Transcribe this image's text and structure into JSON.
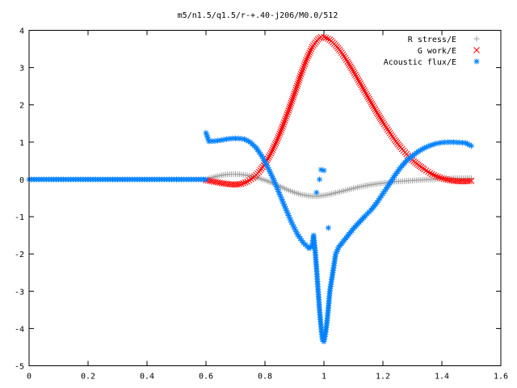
{
  "chart_data": {
    "type": "scatter",
    "title": "m5/n1.5/q1.5/r-+.40-j206/M0.0/512",
    "xlabel": "",
    "ylabel": "",
    "xlim": [
      0,
      1.6
    ],
    "ylim": [
      -5,
      4
    ],
    "xticks": [
      "0",
      "0.2",
      "0.4",
      "0.6",
      "0.8",
      "1",
      "1.2",
      "1.4",
      "1.6"
    ],
    "yticks": [
      "4",
      "3",
      "2",
      "1",
      "0",
      "-1",
      "-2",
      "-3",
      "-4",
      "-5"
    ],
    "grid": false,
    "legend_position": "top-right",
    "series": [
      {
        "name": "R stress/E",
        "marker": "+",
        "color": "#a0a0a0",
        "points": [
          [
            0.6,
            0.0
          ],
          [
            0.62,
            0.05
          ],
          [
            0.64,
            0.09
          ],
          [
            0.66,
            0.12
          ],
          [
            0.68,
            0.14
          ],
          [
            0.7,
            0.14
          ],
          [
            0.72,
            0.13
          ],
          [
            0.74,
            0.11
          ],
          [
            0.76,
            0.07
          ],
          [
            0.78,
            0.03
          ],
          [
            0.8,
            -0.02
          ],
          [
            0.82,
            -0.08
          ],
          [
            0.84,
            -0.15
          ],
          [
            0.86,
            -0.22
          ],
          [
            0.88,
            -0.29
          ],
          [
            0.9,
            -0.35
          ],
          [
            0.92,
            -0.4
          ],
          [
            0.94,
            -0.43
          ],
          [
            0.96,
            -0.45
          ],
          [
            0.98,
            -0.45
          ],
          [
            1.0,
            -0.43
          ],
          [
            1.02,
            -0.4
          ],
          [
            1.04,
            -0.36
          ],
          [
            1.06,
            -0.32
          ],
          [
            1.08,
            -0.28
          ],
          [
            1.1,
            -0.24
          ],
          [
            1.12,
            -0.2
          ],
          [
            1.14,
            -0.17
          ],
          [
            1.16,
            -0.14
          ],
          [
            1.18,
            -0.12
          ],
          [
            1.2,
            -0.1
          ],
          [
            1.22,
            -0.08
          ],
          [
            1.24,
            -0.06
          ],
          [
            1.26,
            -0.05
          ],
          [
            1.28,
            -0.04
          ],
          [
            1.3,
            -0.03
          ],
          [
            1.32,
            -0.02
          ],
          [
            1.34,
            -0.01
          ],
          [
            1.36,
            0.0
          ],
          [
            1.38,
            0.01
          ],
          [
            1.4,
            0.02
          ],
          [
            1.42,
            0.02
          ],
          [
            1.44,
            0.03
          ],
          [
            1.46,
            0.03
          ],
          [
            1.48,
            0.03
          ],
          [
            1.5,
            0.03
          ]
        ]
      },
      {
        "name": "G work/E",
        "marker": "x",
        "color": "#ff0000",
        "points": [
          [
            0.6,
            -0.02
          ],
          [
            0.62,
            -0.05
          ],
          [
            0.64,
            -0.08
          ],
          [
            0.66,
            -0.11
          ],
          [
            0.68,
            -0.13
          ],
          [
            0.7,
            -0.14
          ],
          [
            0.72,
            -0.12
          ],
          [
            0.74,
            -0.06
          ],
          [
            0.76,
            0.04
          ],
          [
            0.78,
            0.2
          ],
          [
            0.8,
            0.42
          ],
          [
            0.82,
            0.7
          ],
          [
            0.84,
            1.03
          ],
          [
            0.86,
            1.42
          ],
          [
            0.88,
            1.85
          ],
          [
            0.9,
            2.3
          ],
          [
            0.92,
            2.77
          ],
          [
            0.94,
            3.2
          ],
          [
            0.96,
            3.55
          ],
          [
            0.98,
            3.76
          ],
          [
            0.99,
            3.82
          ],
          [
            1.0,
            3.82
          ],
          [
            1.02,
            3.75
          ],
          [
            1.04,
            3.6
          ],
          [
            1.06,
            3.4
          ],
          [
            1.08,
            3.16
          ],
          [
            1.1,
            2.9
          ],
          [
            1.12,
            2.62
          ],
          [
            1.14,
            2.34
          ],
          [
            1.16,
            2.06
          ],
          [
            1.18,
            1.79
          ],
          [
            1.2,
            1.53
          ],
          [
            1.22,
            1.29
          ],
          [
            1.24,
            1.06
          ],
          [
            1.26,
            0.86
          ],
          [
            1.28,
            0.68
          ],
          [
            1.3,
            0.52
          ],
          [
            1.32,
            0.39
          ],
          [
            1.34,
            0.27
          ],
          [
            1.36,
            0.17
          ],
          [
            1.38,
            0.09
          ],
          [
            1.4,
            0.03
          ],
          [
            1.42,
            -0.01
          ],
          [
            1.44,
            -0.04
          ],
          [
            1.46,
            -0.05
          ],
          [
            1.48,
            -0.05
          ],
          [
            1.5,
            -0.04
          ]
        ]
      },
      {
        "name": "Acoustic flux/E",
        "marker": "*",
        "color": "#0080ff",
        "points": [
          [
            0.0,
            0.0
          ],
          [
            0.05,
            0.0
          ],
          [
            0.1,
            0.0
          ],
          [
            0.15,
            0.0
          ],
          [
            0.2,
            0.0
          ],
          [
            0.25,
            0.0
          ],
          [
            0.3,
            0.0
          ],
          [
            0.35,
            0.0
          ],
          [
            0.4,
            0.0
          ],
          [
            0.45,
            0.0
          ],
          [
            0.5,
            0.0
          ],
          [
            0.55,
            0.0
          ],
          [
            0.6,
            0.0
          ],
          [
            0.6,
            1.25
          ],
          [
            0.61,
            1.02
          ],
          [
            0.63,
            1.03
          ],
          [
            0.65,
            1.05
          ],
          [
            0.67,
            1.08
          ],
          [
            0.69,
            1.1
          ],
          [
            0.71,
            1.1
          ],
          [
            0.73,
            1.08
          ],
          [
            0.75,
            1.0
          ],
          [
            0.77,
            0.85
          ],
          [
            0.79,
            0.62
          ],
          [
            0.81,
            0.32
          ],
          [
            0.83,
            -0.02
          ],
          [
            0.85,
            -0.4
          ],
          [
            0.87,
            -0.78
          ],
          [
            0.89,
            -1.15
          ],
          [
            0.91,
            -1.47
          ],
          [
            0.93,
            -1.7
          ],
          [
            0.95,
            -1.85
          ],
          [
            0.96,
            -1.78
          ],
          [
            0.965,
            -1.5
          ],
          [
            0.97,
            -1.9
          ],
          [
            0.975,
            -2.4
          ],
          [
            0.98,
            -2.95
          ],
          [
            0.985,
            -3.5
          ],
          [
            0.99,
            -3.95
          ],
          [
            0.995,
            -4.3
          ],
          [
            1.0,
            -4.35
          ],
          [
            1.005,
            -4.15
          ],
          [
            1.01,
            -3.85
          ],
          [
            1.015,
            -3.45
          ],
          [
            1.02,
            -3.0
          ],
          [
            1.03,
            -2.5
          ],
          [
            1.04,
            -2.0
          ],
          [
            1.05,
            -1.82
          ],
          [
            1.06,
            -1.72
          ],
          [
            1.08,
            -1.52
          ],
          [
            1.1,
            -1.32
          ],
          [
            1.12,
            -1.15
          ],
          [
            1.14,
            -0.98
          ],
          [
            1.16,
            -0.82
          ],
          [
            1.18,
            -0.62
          ],
          [
            1.2,
            -0.38
          ],
          [
            1.22,
            -0.15
          ],
          [
            1.24,
            0.1
          ],
          [
            1.26,
            0.32
          ],
          [
            1.28,
            0.5
          ],
          [
            1.3,
            0.63
          ],
          [
            1.32,
            0.75
          ],
          [
            1.34,
            0.84
          ],
          [
            1.36,
            0.91
          ],
          [
            1.38,
            0.96
          ],
          [
            1.4,
            0.99
          ],
          [
            1.42,
            1.0
          ],
          [
            1.44,
            1.0
          ],
          [
            1.46,
            0.99
          ],
          [
            1.48,
            0.98
          ],
          [
            1.5,
            0.9
          ],
          [
            0.975,
            -0.35
          ],
          [
            0.985,
            0.0
          ],
          [
            0.99,
            0.26
          ],
          [
            1.0,
            0.24
          ],
          [
            1.015,
            -1.3
          ]
        ]
      }
    ]
  }
}
